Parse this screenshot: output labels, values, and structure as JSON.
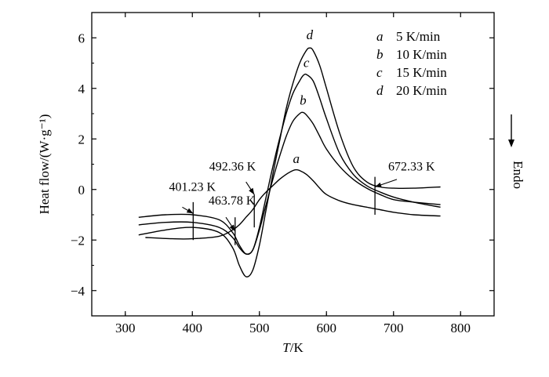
{
  "chart_data": {
    "type": "line",
    "xlabel_italic": "T",
    "xlabel_rest": "/K",
    "ylabel": "Heat flow/(W·g⁻¹)",
    "xlim": [
      250,
      850
    ],
    "ylim": [
      -5,
      7
    ],
    "xticks": [
      300,
      400,
      500,
      600,
      700,
      800
    ],
    "yticks": [
      -4,
      -2,
      0,
      2,
      4,
      6
    ],
    "ytick_labels": [
      "−4",
      "−2",
      "0",
      "2",
      "4",
      "6"
    ],
    "grid": false,
    "side_label": "Endo",
    "legend": [
      {
        "key": "a",
        "text": "5 K/min"
      },
      {
        "key": "b",
        "text": "10 K/min"
      },
      {
        "key": "c",
        "text": "15 K/min"
      },
      {
        "key": "d",
        "text": "20 K/min"
      }
    ],
    "series": [
      {
        "name": "a",
        "x": [
          330,
          370,
          400,
          440,
          460,
          470,
          480,
          490,
          500,
          510,
          520,
          530,
          540,
          550,
          555,
          560,
          570,
          580,
          590,
          600,
          620,
          640,
          660,
          680,
          700,
          730,
          770
        ],
        "y": [
          -1.9,
          -1.95,
          -1.95,
          -1.85,
          -1.6,
          -1.4,
          -1.1,
          -0.8,
          -0.4,
          -0.1,
          0.15,
          0.4,
          0.6,
          0.75,
          0.78,
          0.75,
          0.6,
          0.35,
          0.05,
          -0.2,
          -0.45,
          -0.6,
          -0.7,
          -0.8,
          -0.9,
          -1.0,
          -1.05
        ]
      },
      {
        "name": "b",
        "x": [
          320,
          360,
          400,
          440,
          460,
          470,
          480,
          490,
          500,
          510,
          520,
          530,
          540,
          550,
          560,
          565,
          570,
          580,
          590,
          600,
          620,
          640,
          660,
          680,
          700,
          730,
          770
        ],
        "y": [
          -1.4,
          -1.3,
          -1.3,
          -1.5,
          -1.9,
          -2.3,
          -2.55,
          -2.4,
          -1.6,
          -0.6,
          0.4,
          1.3,
          2.1,
          2.7,
          3.0,
          3.05,
          2.95,
          2.6,
          2.1,
          1.6,
          0.9,
          0.4,
          0.05,
          -0.2,
          -0.4,
          -0.5,
          -0.6
        ]
      },
      {
        "name": "c",
        "x": [
          320,
          360,
          400,
          440,
          460,
          470,
          480,
          490,
          500,
          510,
          520,
          530,
          540,
          550,
          560,
          565,
          570,
          580,
          590,
          600,
          620,
          640,
          660,
          680,
          700,
          730,
          770
        ],
        "y": [
          -1.1,
          -1.0,
          -1.0,
          -1.2,
          -1.7,
          -2.2,
          -2.55,
          -2.4,
          -1.5,
          -0.3,
          0.9,
          2.0,
          3.0,
          3.8,
          4.3,
          4.5,
          4.55,
          4.3,
          3.6,
          2.8,
          1.4,
          0.6,
          0.15,
          -0.1,
          -0.3,
          -0.5,
          -0.7
        ]
      },
      {
        "name": "d",
        "x": [
          320,
          360,
          400,
          440,
          460,
          470,
          480,
          490,
          500,
          510,
          520,
          530,
          540,
          550,
          560,
          570,
          575,
          580,
          590,
          600,
          620,
          640,
          660,
          680,
          700,
          730,
          770
        ],
        "y": [
          -1.8,
          -1.6,
          -1.5,
          -1.7,
          -2.3,
          -3.0,
          -3.45,
          -3.2,
          -2.2,
          -0.8,
          0.6,
          1.9,
          3.2,
          4.2,
          5.0,
          5.5,
          5.6,
          5.5,
          4.9,
          4.0,
          2.2,
          0.9,
          0.3,
          0.1,
          0.05,
          0.05,
          0.1
        ]
      }
    ],
    "curve_labels": [
      {
        "text": "a",
        "x": 555,
        "y": 1.05
      },
      {
        "text": "b",
        "x": 565,
        "y": 3.35
      },
      {
        "text": "c",
        "x": 570,
        "y": 4.85
      },
      {
        "text": "d",
        "x": 575,
        "y": 5.95
      }
    ],
    "annotations": [
      {
        "text": "401.23 K",
        "marker_x": 401.23,
        "marker_y": [
          -2.0,
          -0.5
        ],
        "label_x": 400,
        "label_y": -0.05,
        "arrow_from": [
          385,
          -0.7
        ],
        "arrow_to": [
          401.23,
          -0.95
        ]
      },
      {
        "text": "463.78 K",
        "marker_x": 463.78,
        "marker_y": [
          -2.2,
          -1.1
        ],
        "label_x": 459,
        "label_y": -0.6,
        "arrow_from": [
          450,
          -1.1
        ],
        "arrow_to": [
          463.78,
          -1.65
        ]
      },
      {
        "text": "492.36 K",
        "marker_x": 492.36,
        "marker_y": [
          -1.5,
          -0.2
        ],
        "label_x": 460,
        "label_y": 0.75,
        "arrow_from": [
          480,
          0.3
        ],
        "arrow_to": [
          492.36,
          -0.2
        ]
      },
      {
        "text": "672.33 K",
        "marker_x": 672.33,
        "marker_y": [
          -1.0,
          0.5
        ],
        "label_x": 727,
        "label_y": 0.75,
        "arrow_from": [
          705,
          0.4
        ],
        "arrow_to": [
          672.33,
          0.1
        ]
      }
    ]
  }
}
